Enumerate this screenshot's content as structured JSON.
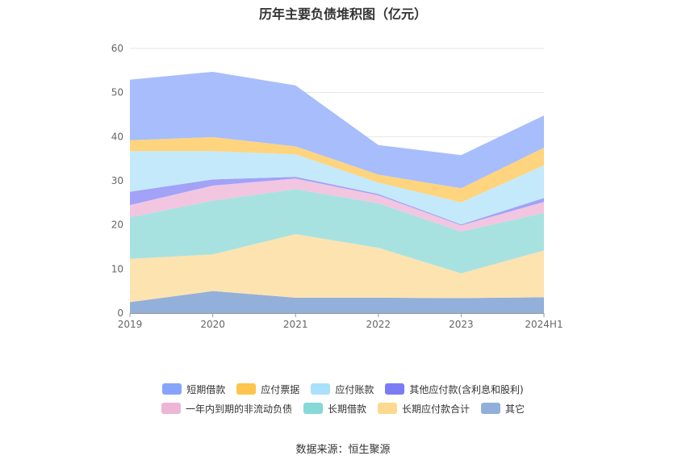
{
  "chart_data": {
    "type": "area",
    "stacked": true,
    "title": "历年主要负债堆积图（亿元）",
    "x": [
      "2019",
      "2020",
      "2021",
      "2022",
      "2023",
      "2024H1"
    ],
    "ylim": [
      0,
      60
    ],
    "yticks": [
      0,
      10,
      20,
      30,
      40,
      50,
      60
    ],
    "grid": true,
    "legend_position": "bottom",
    "series": [
      {
        "name": "其它",
        "color": "#93b0db",
        "values": [
          2.5,
          5.0,
          3.5,
          3.5,
          3.4,
          3.6
        ]
      },
      {
        "name": "长期应付款合计",
        "color": "#fde3b0",
        "values": [
          9.8,
          8.3,
          14.4,
          11.3,
          5.6,
          10.6
        ]
      },
      {
        "name": "长期借款",
        "color": "#a8e2e0",
        "values": [
          9.4,
          12.2,
          10.2,
          10.1,
          9.5,
          8.5
        ]
      },
      {
        "name": "一年内到期的非流动负债",
        "color": "#f2c6e0",
        "values": [
          2.8,
          3.4,
          2.4,
          1.8,
          1.4,
          2.5
        ]
      },
      {
        "name": "其他应付款(含利息和股利)",
        "color": "#a1a2f8",
        "values": [
          3.0,
          1.4,
          0.4,
          0.3,
          0.2,
          0.9
        ]
      },
      {
        "name": "应付账款",
        "color": "#c4e9fb",
        "values": [
          9.2,
          6.4,
          5.1,
          2.6,
          5.0,
          7.4
        ]
      },
      {
        "name": "应付票据",
        "color": "#fed47e",
        "values": [
          2.5,
          3.2,
          1.8,
          1.8,
          3.2,
          4.0
        ]
      },
      {
        "name": "短期借款",
        "color": "#a7bdfc",
        "values": [
          13.7,
          14.8,
          13.8,
          6.7,
          7.5,
          7.3
        ]
      }
    ],
    "legend": [
      [
        {
          "name": "短期借款",
          "color": "#86a4fb"
        },
        {
          "name": "应付票据",
          "color": "#fdc54c"
        },
        {
          "name": "应付账款",
          "color": "#a9e0fb"
        },
        {
          "name": "其他应付款(含利息和股利)",
          "color": "#7b7cf5"
        }
      ],
      [
        {
          "name": "一年内到期的非流动负债",
          "color": "#ecb6d6"
        },
        {
          "name": "长期借款",
          "color": "#86d9d6"
        },
        {
          "name": "长期应付款合计",
          "color": "#fdd98f"
        },
        {
          "name": "其它",
          "color": "#92afdb"
        }
      ]
    ]
  },
  "source_text": "数据来源：恒生聚源"
}
